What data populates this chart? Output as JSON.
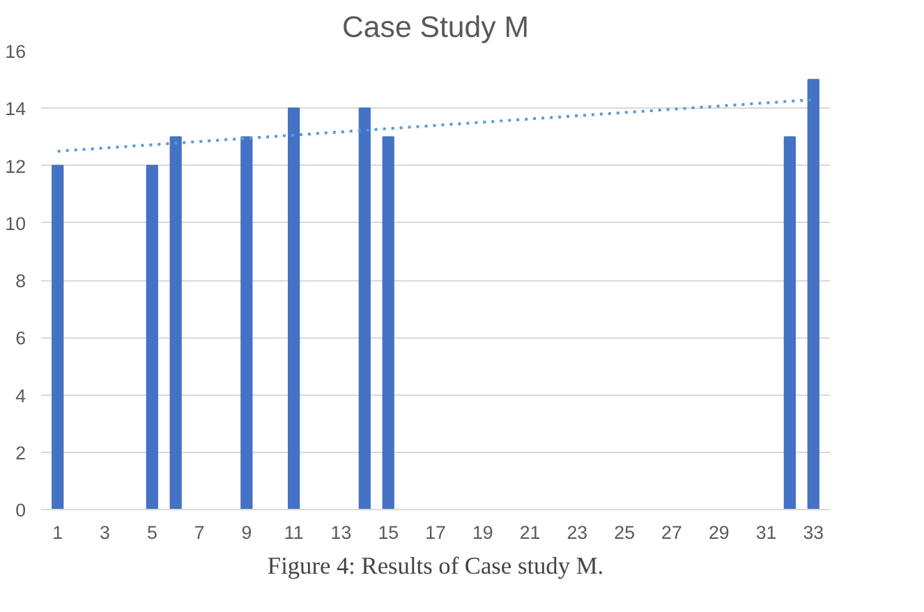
{
  "chart_data": {
    "type": "bar",
    "title": "Case Study M",
    "x": [
      1,
      5,
      6,
      9,
      11,
      14,
      15,
      32,
      33
    ],
    "series": [
      {
        "color": "#4472c4",
        "values": [
          12,
          12,
          13,
          13,
          14,
          14,
          13,
          13,
          15
        ]
      },
      {
        "type": "line",
        "color": "#5b9bd5",
        "x": [
          1,
          33
        ],
        "values": [
          12.5,
          14.3
        ],
        "line_style": "dotted"
      }
    ],
    "xlim": [
      0.3,
      33.7
    ],
    "xticks": [
      1,
      3,
      5,
      7,
      9,
      11,
      13,
      15,
      17,
      19,
      21,
      23,
      25,
      27,
      29,
      31,
      33
    ],
    "ylim": [
      0,
      16
    ],
    "yticks": [
      0,
      2,
      4,
      6,
      8,
      10,
      12,
      14,
      16
    ],
    "grid": "y",
    "annotations": [
      "Figure 4: Results of Case study M."
    ]
  }
}
